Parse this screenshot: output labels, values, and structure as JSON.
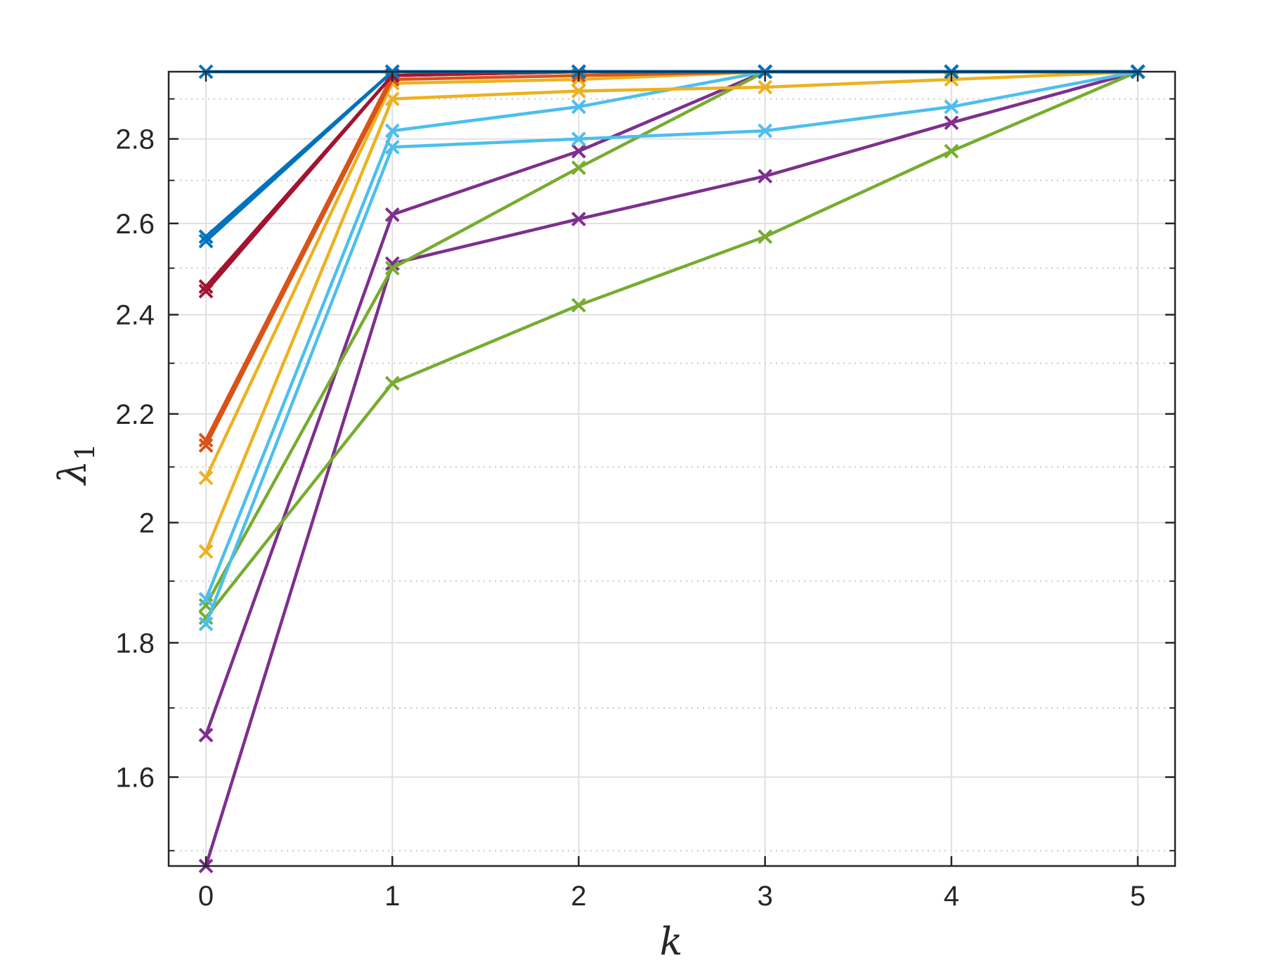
{
  "chart_data": {
    "type": "line",
    "title": "",
    "xlabel": "k",
    "ylabel": "λ",
    "ylabel_subscript": "1",
    "xlim": [
      -0.2,
      5.2
    ],
    "ylim": [
      1.48,
      2.97
    ],
    "y_scale": "log",
    "x_ticks": [
      0,
      1,
      2,
      3,
      4,
      5
    ],
    "x_tick_labels": [
      "0",
      "1",
      "2",
      "3",
      "4",
      "5"
    ],
    "y_ticks": [
      1.6,
      1.8,
      2.0,
      2.2,
      2.4,
      2.6,
      2.8
    ],
    "y_tick_labels": [
      "1.6",
      "1.8",
      "2",
      "2.2",
      "2.4",
      "2.6",
      "2.8"
    ],
    "y_minor_ticks": [
      1.5,
      1.7,
      1.9,
      2.1,
      2.3,
      2.5,
      2.7,
      2.9
    ],
    "grid": true,
    "minor_grid": true,
    "legend": "none",
    "marker": "x",
    "x": [
      0,
      1,
      2,
      3,
      4,
      5
    ],
    "series": [
      {
        "color": "#7E2F8E",
        "values": [
          1.48,
          2.51,
          2.61,
          2.71,
          2.84,
          2.97
        ]
      },
      {
        "color": "#7E2F8E",
        "values": [
          1.66,
          2.62,
          2.77,
          2.97,
          2.97,
          2.97
        ]
      },
      {
        "color": "#77AC30",
        "values": [
          1.84,
          2.26,
          2.42,
          2.57,
          2.77,
          2.97
        ]
      },
      {
        "color": "#77AC30",
        "values": [
          1.86,
          2.5,
          2.73,
          2.97,
          2.97,
          2.97
        ]
      },
      {
        "color": "#4DBEEE",
        "values": [
          1.83,
          2.78,
          2.8,
          2.82,
          2.88,
          2.97
        ]
      },
      {
        "color": "#4DBEEE",
        "values": [
          1.87,
          2.82,
          2.88,
          2.97,
          2.97,
          2.97
        ]
      },
      {
        "color": "#EDB120",
        "values": [
          1.95,
          2.9,
          2.92,
          2.93,
          2.95,
          2.97
        ]
      },
      {
        "color": "#EDB120",
        "values": [
          2.08,
          2.94,
          2.95,
          2.97,
          2.97,
          2.97
        ]
      },
      {
        "color": "#D95319",
        "values": [
          2.14,
          2.95,
          2.96,
          2.97,
          2.97,
          2.97
        ]
      },
      {
        "color": "#D95319",
        "values": [
          2.15,
          2.96,
          2.97,
          2.97,
          2.97,
          2.97
        ]
      },
      {
        "color": "#A2142F",
        "values": [
          2.45,
          2.96,
          2.97,
          2.97,
          2.97,
          2.97
        ]
      },
      {
        "color": "#A2142F",
        "values": [
          2.46,
          2.96,
          2.97,
          2.97,
          2.97,
          2.97
        ]
      },
      {
        "color": "#0072BD",
        "values": [
          2.56,
          2.97,
          2.97,
          2.97,
          2.97,
          2.97
        ]
      },
      {
        "color": "#0072BD",
        "values": [
          2.57,
          2.97,
          2.97,
          2.97,
          2.97,
          2.97
        ]
      },
      {
        "color": "#0072BD",
        "values": [
          2.97,
          2.97,
          2.97,
          2.97,
          2.97,
          2.97
        ]
      }
    ]
  }
}
